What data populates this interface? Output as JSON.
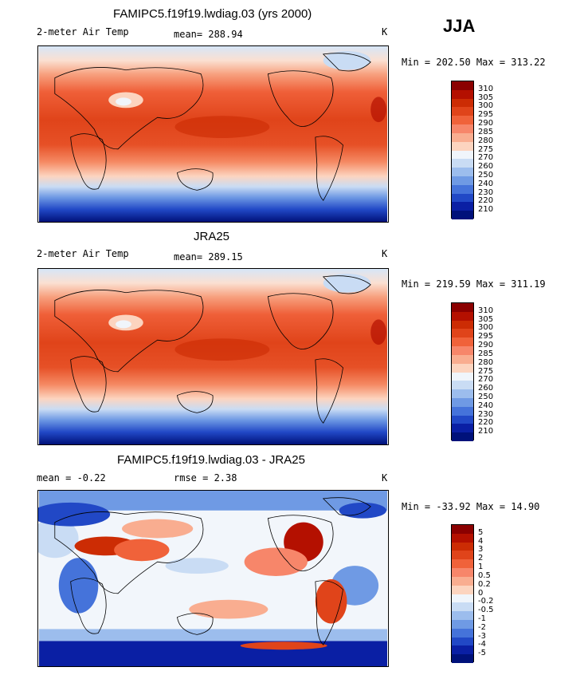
{
  "season": "JJA",
  "panels": [
    {
      "title": "FAMIPC5.f19f19.lwdiag.03 (yrs 2000)",
      "variable": "2-meter Air Temp",
      "stat_text": "mean= 288.94",
      "units": "K",
      "minmax": "Min = 202.50 Max = 313.22",
      "colorbar": {
        "labels": [
          "310",
          "305",
          "300",
          "295",
          "290",
          "285",
          "280",
          "275",
          "270",
          "260",
          "250",
          "240",
          "230",
          "220",
          "210"
        ],
        "colors": [
          "#8b0000",
          "#b41000",
          "#cc2c04",
          "#e0441a",
          "#f0623a",
          "#f7866a",
          "#f9ad90",
          "#fcd4bf",
          "#f0f5fb",
          "#c9dcf4",
          "#9cbded",
          "#6f9ae4",
          "#4573da",
          "#2148c6",
          "#0a1fa4",
          "#00117a"
        ]
      },
      "map_palette": "temp"
    },
    {
      "title": "JRA25",
      "variable": "2-meter Air Temp",
      "stat_text": "mean= 289.15",
      "units": "K",
      "minmax": "Min = 219.59 Max = 311.19",
      "colorbar": {
        "labels": [
          "310",
          "305",
          "300",
          "295",
          "290",
          "285",
          "280",
          "275",
          "270",
          "260",
          "250",
          "240",
          "230",
          "220",
          "210"
        ],
        "colors": [
          "#8b0000",
          "#b41000",
          "#cc2c04",
          "#e0441a",
          "#f0623a",
          "#f7866a",
          "#f9ad90",
          "#fcd4bf",
          "#f0f5fb",
          "#c9dcf4",
          "#9cbded",
          "#6f9ae4",
          "#4573da",
          "#2148c6",
          "#0a1fa4",
          "#00117a"
        ]
      },
      "map_palette": "temp"
    },
    {
      "title": "FAMIPC5.f19f19.lwdiag.03 - JRA25",
      "stat_text": "mean =   -0.22",
      "rmse_text": "rmse =    2.38",
      "units": "K",
      "minmax": "Min = -33.92 Max =  14.90",
      "colorbar": {
        "labels": [
          "5",
          "4",
          "3",
          "2",
          "1",
          "0.5",
          "0.2",
          "0",
          "-0.2",
          "-0.5",
          "-1",
          "-2",
          "-3",
          "-4",
          "-5"
        ],
        "colors": [
          "#8b0000",
          "#b41000",
          "#cc2c04",
          "#e0441a",
          "#f0623a",
          "#f7866a",
          "#f9ad90",
          "#fcd4bf",
          "#f0f5fb",
          "#c9dcf4",
          "#9cbded",
          "#6f9ae4",
          "#4573da",
          "#2148c6",
          "#0a1fa4",
          "#00117a"
        ]
      },
      "map_palette": "diff"
    }
  ]
}
